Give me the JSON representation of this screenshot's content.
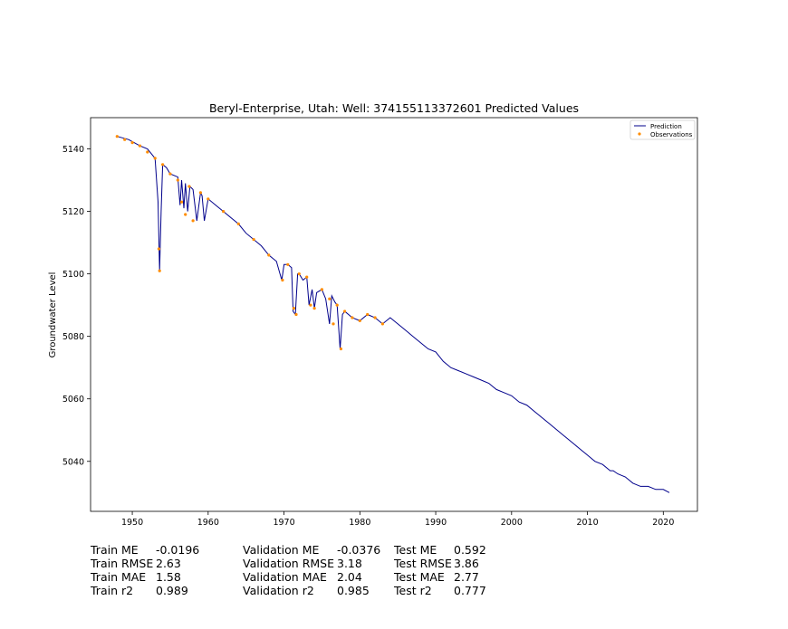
{
  "chart_data": {
    "type": "line",
    "title": "Beryl-Enterprise, Utah: Well: 374155113372601 Predicted Values",
    "xlabel": "",
    "ylabel": "Groundwater Level",
    "xlim": [
      1944.5,
      2024.5
    ],
    "ylim": [
      5024,
      5150
    ],
    "xticks": [
      1950,
      1960,
      1970,
      1980,
      1990,
      2000,
      2010,
      2020
    ],
    "yticks": [
      5040,
      5060,
      5080,
      5100,
      5120,
      5140
    ],
    "legend": {
      "position": "top-right",
      "entries": [
        "Prediction",
        "Observations"
      ]
    },
    "series": [
      {
        "name": "Prediction",
        "kind": "line",
        "color": "#00008b",
        "x": [
          1948.0,
          1949.5,
          1951.0,
          1952.0,
          1953.0,
          1953.4,
          1953.6,
          1953.8,
          1954.0,
          1954.5,
          1955.0,
          1956.0,
          1956.3,
          1956.5,
          1956.8,
          1957.0,
          1957.3,
          1957.6,
          1958.0,
          1958.5,
          1959.0,
          1959.2,
          1959.5,
          1960.0,
          1961.0,
          1962.0,
          1963.0,
          1964.0,
          1965.0,
          1966.0,
          1967.0,
          1968.0,
          1969.0,
          1969.7,
          1970.0,
          1970.5,
          1971.0,
          1971.2,
          1971.5,
          1971.8,
          1972.0,
          1972.5,
          1973.0,
          1973.3,
          1973.7,
          1974.0,
          1974.3,
          1975.0,
          1975.5,
          1976.0,
          1976.3,
          1976.7,
          1977.0,
          1977.4,
          1977.7,
          1978.0,
          1979.0,
          1980.0,
          1981.0,
          1982.0,
          1983.0,
          1984.0,
          1985.0,
          1986.0,
          1987.0,
          1988.0,
          1989.0,
          1990.0,
          1991.0,
          1992.0,
          1993.0,
          1994.0,
          1995.0,
          1996.0,
          1997.0,
          1998.0,
          1999.0,
          2000.0,
          2001.0,
          2002.0,
          2003.0,
          2004.0,
          2005.0,
          2006.0,
          2007.0,
          2008.0,
          2009.0,
          2010.0,
          2011.0,
          2012.0,
          2013.0,
          2013.4,
          2014.0,
          2015.0,
          2016.0,
          2017.0,
          2018.0,
          2019.0,
          2020.0,
          2020.8
        ],
        "y": [
          5144,
          5143,
          5141,
          5140,
          5137,
          5123,
          5101,
          5120,
          5135,
          5134,
          5132,
          5131,
          5122,
          5130,
          5121,
          5129,
          5120,
          5128,
          5127,
          5117,
          5126,
          5125,
          5117,
          5124,
          5122,
          5120,
          5118,
          5116,
          5113,
          5111,
          5109,
          5106,
          5104,
          5098,
          5103,
          5103,
          5102,
          5088,
          5087,
          5100,
          5100,
          5098,
          5099,
          5090,
          5095,
          5089,
          5094,
          5095,
          5092,
          5084,
          5093,
          5091,
          5090,
          5076,
          5087,
          5088,
          5086,
          5085,
          5087,
          5086,
          5084,
          5086,
          5084,
          5082,
          5080,
          5078,
          5076,
          5075,
          5072,
          5070,
          5069,
          5068,
          5067,
          5066,
          5065,
          5063,
          5062,
          5061,
          5059,
          5058,
          5056,
          5054,
          5052,
          5050,
          5048,
          5046,
          5044,
          5042,
          5040,
          5039,
          5037,
          5037,
          5036,
          5035,
          5033,
          5032,
          5032,
          5031,
          5031,
          5030
        ]
      },
      {
        "name": "Observations",
        "kind": "scatter",
        "color": "#ff8c00",
        "x": [
          1948.0,
          1949.0,
          1950.0,
          1951.0,
          1952.0,
          1953.0,
          1953.5,
          1953.6,
          1954.0,
          1955.0,
          1956.0,
          1956.5,
          1957.0,
          1957.5,
          1958.0,
          1959.0,
          1960.0,
          1962.0,
          1964.0,
          1966.0,
          1968.0,
          1969.8,
          1970.5,
          1971.3,
          1971.6,
          1972.0,
          1973.0,
          1973.5,
          1974.0,
          1975.0,
          1976.0,
          1976.5,
          1977.0,
          1977.5,
          1978.0,
          1979.0,
          1980.0,
          1981.0,
          1982.0,
          1983.0
        ],
        "y": [
          5144,
          5143,
          5142,
          5141,
          5139,
          5137,
          5108,
          5101,
          5135,
          5132,
          5130,
          5123,
          5119,
          5128,
          5117,
          5126,
          5124,
          5120,
          5116,
          5111,
          5106,
          5098,
          5103,
          5089,
          5087,
          5100,
          5099,
          5090,
          5089,
          5095,
          5092,
          5084,
          5090,
          5076,
          5088,
          5086,
          5085,
          5087,
          5086,
          5084
        ]
      }
    ]
  },
  "stats": {
    "train": [
      {
        "label": "Train ME",
        "value": "-0.0196"
      },
      {
        "label": "Train RMSE",
        "value": "2.63"
      },
      {
        "label": "Train MAE",
        "value": "1.58"
      },
      {
        "label": "Train r2",
        "value": "0.989"
      }
    ],
    "validation": [
      {
        "label": "Validation ME",
        "value": "-0.0376"
      },
      {
        "label": "Validation RMSE",
        "value": "3.18"
      },
      {
        "label": "Validation MAE",
        "value": "2.04"
      },
      {
        "label": "Validation r2",
        "value": "0.985"
      }
    ],
    "test": [
      {
        "label": "Test ME",
        "value": "0.592"
      },
      {
        "label": "Test RMSE",
        "value": "3.86"
      },
      {
        "label": "Test MAE",
        "value": "2.77"
      },
      {
        "label": "Test r2",
        "value": "0.777"
      }
    ]
  }
}
